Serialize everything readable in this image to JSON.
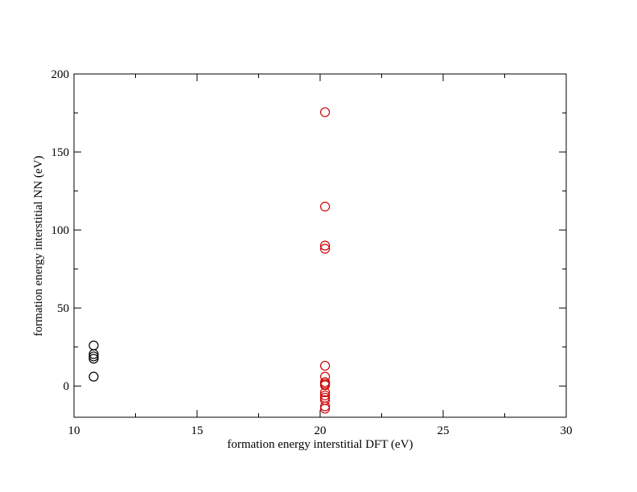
{
  "chart_data": {
    "type": "scatter",
    "title": "",
    "xlabel": "formation energy interstitial DFT (eV)",
    "ylabel": "formation energy interstitial NN (eV)",
    "xlim": [
      10,
      30
    ],
    "ylim": [
      -20,
      200
    ],
    "x_ticks": [
      10,
      15,
      20,
      25,
      30
    ],
    "y_ticks": [
      0,
      50,
      100,
      150,
      200
    ],
    "grid": false,
    "legend": "none",
    "series": [
      {
        "color": "#000000",
        "marker": "open-circle",
        "points": [
          {
            "x": 10.8,
            "y": 26
          },
          {
            "x": 10.8,
            "y": 20.5
          },
          {
            "x": 10.8,
            "y": 19
          },
          {
            "x": 10.8,
            "y": 17.5
          },
          {
            "x": 10.8,
            "y": 6
          }
        ]
      },
      {
        "color": "#cc0000",
        "marker": "open-circle",
        "points": [
          {
            "x": 20.2,
            "y": 175.5
          },
          {
            "x": 20.2,
            "y": 115
          },
          {
            "x": 20.2,
            "y": 90
          },
          {
            "x": 20.2,
            "y": 88
          },
          {
            "x": 20.2,
            "y": 13
          },
          {
            "x": 20.2,
            "y": 6
          },
          {
            "x": 20.2,
            "y": 2.5
          },
          {
            "x": 20.2,
            "y": 1.5
          },
          {
            "x": 20.2,
            "y": 0.5
          },
          {
            "x": 20.2,
            "y": -4
          },
          {
            "x": 20.2,
            "y": -6
          },
          {
            "x": 20.2,
            "y": -7.5
          },
          {
            "x": 20.2,
            "y": -9
          },
          {
            "x": 20.2,
            "y": -13
          },
          {
            "x": 20.2,
            "y": -14.5
          }
        ]
      }
    ]
  }
}
